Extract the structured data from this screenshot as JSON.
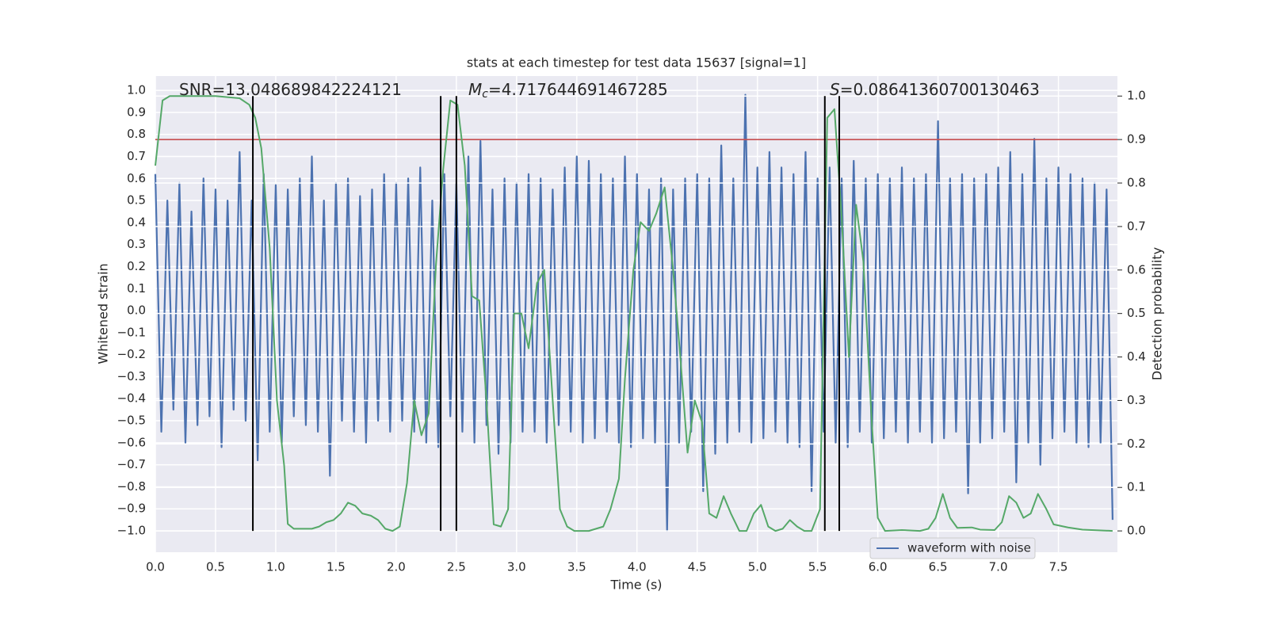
{
  "chart_data": {
    "type": "line",
    "title": "stats at each timestep for test data 15637 [signal=1]",
    "xlabel": "Time (s)",
    "ylabel": "Whitened strain",
    "y2label": "Detection probability",
    "annotations": [
      {
        "text": "SNR=13.048689842224121"
      },
      {
        "symbol": "M",
        "subscript": "c",
        "text": "=4.717644691467285"
      },
      {
        "symbol": "S",
        "text": "=0.08641360700130463"
      }
    ],
    "xlim": [
      0,
      7.99
    ],
    "ylim": [
      -1.097,
      1.065
    ],
    "y2lim": [
      -0.049,
      1.046
    ],
    "grid": true,
    "xticks": [
      {
        "value": 0,
        "label": "0.0"
      },
      0.5,
      {
        "value": 1,
        "label": "1.0"
      },
      1.5,
      {
        "value": 2,
        "label": "2.0"
      },
      2.5,
      {
        "value": 3,
        "label": "3.0"
      },
      3.5,
      {
        "value": 4,
        "label": "4.0"
      },
      4.5,
      {
        "value": 5,
        "label": "5.0"
      },
      5.5,
      {
        "value": 6,
        "label": "6.0"
      },
      6.5,
      {
        "value": 7,
        "label": "7.0"
      },
      7.5
    ],
    "yticks": [
      {
        "value": -1,
        "label": "−1.0"
      },
      {
        "value": -0.9,
        "label": "−0.9"
      },
      {
        "value": -0.8,
        "label": "−0.8"
      },
      {
        "value": -0.7,
        "label": "−0.7"
      },
      {
        "value": -0.6,
        "label": "−0.6"
      },
      {
        "value": -0.5,
        "label": "−0.5"
      },
      {
        "value": -0.4,
        "label": "−0.4"
      },
      {
        "value": -0.3,
        "label": "−0.3"
      },
      {
        "value": -0.2,
        "label": "−0.2"
      },
      {
        "value": -0.1,
        "label": "−0.1"
      },
      {
        "value": 0,
        "label": "0.0"
      },
      0.1,
      0.2,
      0.3,
      0.4,
      0.5,
      0.6,
      0.7,
      0.8,
      0.9,
      {
        "value": 1,
        "label": "1.0"
      }
    ],
    "y2ticks": [
      {
        "value": 0,
        "label": "0.0"
      },
      0.1,
      0.2,
      0.3,
      0.4,
      0.5,
      0.6,
      0.7,
      0.8,
      0.9,
      {
        "value": 1,
        "label": "1.0"
      }
    ],
    "hline": {
      "value": 0.9,
      "axis": "y2",
      "color": "#c03d3e"
    },
    "vlines": {
      "x": [
        0.81,
        2.37,
        2.5,
        5.56,
        5.68
      ],
      "color": "#000000"
    },
    "series": [
      {
        "name": "waveform with noise",
        "color": "#4c72b0",
        "x": [
          0,
          0.05,
          0.1,
          0.15,
          0.2,
          0.25,
          0.3,
          0.35,
          0.4,
          0.45,
          0.5,
          0.55,
          0.6,
          0.65,
          0.7,
          0.75,
          0.8,
          0.85,
          0.9,
          0.95,
          1,
          1.05,
          1.1,
          1.15,
          1.2,
          1.25,
          1.3,
          1.35,
          1.4,
          1.45,
          1.5,
          1.55,
          1.6,
          1.65,
          1.7,
          1.75,
          1.8,
          1.85,
          1.9,
          1.95,
          2,
          2.05,
          2.1,
          2.15,
          2.2,
          2.25,
          2.3,
          2.35,
          2.4,
          2.45,
          2.5,
          2.55,
          2.6,
          2.65,
          2.7,
          2.75,
          2.8,
          2.85,
          2.9,
          2.95,
          3,
          3.05,
          3.1,
          3.15,
          3.2,
          3.25,
          3.3,
          3.35,
          3.4,
          3.45,
          3.5,
          3.55,
          3.6,
          3.65,
          3.7,
          3.75,
          3.8,
          3.85,
          3.9,
          3.95,
          4,
          4.05,
          4.1,
          4.15,
          4.2,
          4.25,
          4.3,
          4.35,
          4.4,
          4.45,
          4.5,
          4.55,
          4.6,
          4.65,
          4.7,
          4.75,
          4.8,
          4.85,
          4.9,
          4.95,
          5,
          5.05,
          5.1,
          5.15,
          5.2,
          5.25,
          5.3,
          5.35,
          5.4,
          5.45,
          5.5,
          5.55,
          5.6,
          5.65,
          5.7,
          5.75,
          5.8,
          5.85,
          5.9,
          5.95,
          6,
          6.05,
          6.1,
          6.15,
          6.2,
          6.25,
          6.3,
          6.35,
          6.4,
          6.45,
          6.5,
          6.55,
          6.6,
          6.65,
          6.7,
          6.75,
          6.8,
          6.85,
          6.9,
          6.95,
          7,
          7.05,
          7.1,
          7.15,
          7.2,
          7.25,
          7.3,
          7.35,
          7.4,
          7.45,
          7.5,
          7.55,
          7.6,
          7.65,
          7.7,
          7.75,
          7.8,
          7.85,
          7.9,
          7.95
        ],
        "values": [
          0.62,
          -0.55,
          0.5,
          -0.45,
          0.58,
          -0.6,
          0.45,
          -0.52,
          0.6,
          -0.48,
          0.55,
          -0.62,
          0.5,
          -0.45,
          0.72,
          -0.5,
          0.5,
          -0.68,
          0.62,
          -0.55,
          0.57,
          -0.6,
          0.55,
          -0.48,
          0.6,
          -0.52,
          0.7,
          -0.55,
          0.5,
          -0.75,
          0.58,
          -0.5,
          0.6,
          -0.55,
          0.52,
          -0.6,
          0.55,
          -0.5,
          0.62,
          -0.55,
          0.58,
          -0.5,
          0.6,
          -0.55,
          0.65,
          -0.6,
          0.5,
          -0.62,
          0.62,
          -0.48,
          0.58,
          -0.55,
          0.7,
          -0.6,
          0.77,
          -0.52,
          0.55,
          -0.65,
          0.6,
          -0.6,
          0.58,
          -0.55,
          0.62,
          -0.55,
          0.6,
          -0.6,
          0.55,
          -0.52,
          0.65,
          -0.55,
          0.7,
          -0.6,
          0.68,
          -0.58,
          0.62,
          -0.55,
          0.6,
          -0.6,
          0.7,
          -0.62,
          0.62,
          -0.58,
          0.55,
          -0.6,
          0.6,
          -1.0,
          0.55,
          -0.6,
          0.6,
          -0.55,
          0.62,
          -0.82,
          0.6,
          -0.65,
          0.75,
          -0.6,
          0.6,
          -0.55,
          0.98,
          -0.6,
          0.65,
          -0.58,
          0.72,
          -0.55,
          0.65,
          -0.6,
          0.62,
          -0.62,
          0.72,
          -0.82,
          0.6,
          -0.55,
          0.65,
          -0.6,
          0.6,
          -0.62,
          0.68,
          -0.55,
          0.6,
          -0.6,
          0.62,
          -0.58,
          0.6,
          -0.55,
          0.65,
          -0.6,
          0.6,
          -0.55,
          0.62,
          -0.6,
          0.86,
          -0.58,
          0.6,
          -0.55,
          0.62,
          -0.83,
          0.6,
          -0.6,
          0.62,
          -0.58,
          0.65,
          -0.55,
          0.72,
          -0.78,
          0.62,
          -0.6,
          0.78,
          -0.7,
          0.6,
          -0.58,
          0.65,
          -0.55,
          0.62,
          -0.6,
          0.6,
          -0.62,
          0.58,
          -0.6,
          0.55,
          -0.95
        ]
      },
      {
        "color": "#55a868",
        "axis": "y2",
        "x": [
          0,
          0.06,
          0.12,
          0.5,
          0.7,
          0.78,
          0.83,
          0.88,
          0.95,
          1.01,
          1.07,
          1.1,
          1.15,
          1.3,
          1.36,
          1.42,
          1.48,
          1.54,
          1.6,
          1.66,
          1.72,
          1.79,
          1.85,
          1.91,
          1.97,
          2.03,
          2.09,
          2.15,
          2.21,
          2.27,
          2.33,
          2.39,
          2.45,
          2.51,
          2.57,
          2.63,
          2.69,
          2.75,
          2.81,
          2.87,
          2.93,
          2.98,
          3.04,
          3.1,
          3.17,
          3.23,
          3.3,
          3.36,
          3.42,
          3.48,
          3.6,
          3.72,
          3.78,
          3.85,
          3.9,
          3.97,
          4.03,
          4.1,
          4.16,
          4.23,
          4.3,
          4.36,
          4.42,
          4.48,
          4.54,
          4.6,
          4.66,
          4.72,
          4.78,
          4.85,
          4.91,
          4.97,
          5.03,
          5.09,
          5.15,
          5.21,
          5.27,
          5.33,
          5.39,
          5.45,
          5.52,
          5.58,
          5.64,
          5.7,
          5.76,
          5.82,
          5.88,
          5.95,
          6,
          6.06,
          6.2,
          6.35,
          6.42,
          6.48,
          6.54,
          6.6,
          6.66,
          6.78,
          6.85,
          6.97,
          7.03,
          7.09,
          7.15,
          7.21,
          7.27,
          7.33,
          7.4,
          7.46,
          7.58,
          7.7,
          7.95
        ],
        "values": [
          0.84,
          0.99,
          1.0,
          1.0,
          0.995,
          0.98,
          0.95,
          0.88,
          0.65,
          0.3,
          0.15,
          0.016,
          0.005,
          0.005,
          0.01,
          0.02,
          0.025,
          0.04,
          0.065,
          0.058,
          0.04,
          0.035,
          0.025,
          0.005,
          0.0,
          0.01,
          0.11,
          0.3,
          0.22,
          0.27,
          0.61,
          0.83,
          0.99,
          0.98,
          0.84,
          0.54,
          0.53,
          0.3,
          0.015,
          0.01,
          0.05,
          0.5,
          0.5,
          0.42,
          0.57,
          0.6,
          0.3,
          0.05,
          0.01,
          0.0,
          0.0,
          0.01,
          0.05,
          0.12,
          0.35,
          0.6,
          0.71,
          0.69,
          0.73,
          0.79,
          0.6,
          0.4,
          0.18,
          0.3,
          0.25,
          0.04,
          0.03,
          0.08,
          0.04,
          0.0,
          0.0,
          0.04,
          0.06,
          0.01,
          0.0,
          0.005,
          0.025,
          0.01,
          0.0,
          0.0,
          0.05,
          0.95,
          0.97,
          0.72,
          0.4,
          0.75,
          0.62,
          0.25,
          0.03,
          0.0,
          0.002,
          0.0,
          0.005,
          0.03,
          0.085,
          0.03,
          0.007,
          0.008,
          0.003,
          0.002,
          0.02,
          0.08,
          0.065,
          0.03,
          0.04,
          0.085,
          0.05,
          0.015,
          0.008,
          0.003,
          0.0
        ]
      }
    ]
  }
}
